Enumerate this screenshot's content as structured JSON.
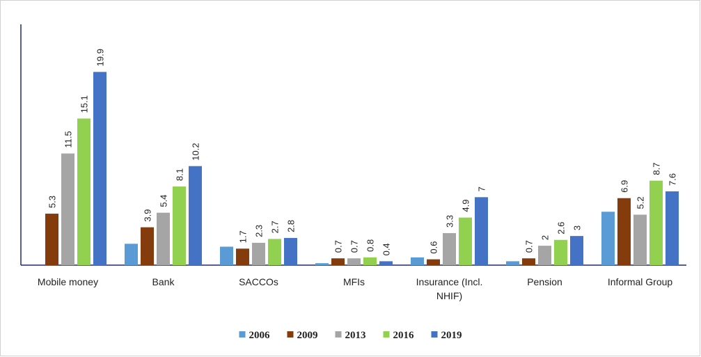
{
  "chart_data": {
    "type": "bar",
    "categories": [
      "Mobile money",
      "Bank",
      "SACCOs",
      "MFIs",
      "Insurance (Incl. NHIF)",
      "Pension",
      "Informal Group"
    ],
    "series": [
      {
        "name": "2006",
        "color": "#5b9bd5",
        "data_labels": false,
        "values": [
          null,
          2.2,
          1.9,
          0.2,
          0.8,
          0.4,
          5.5
        ]
      },
      {
        "name": "2009",
        "color": "#843c0c",
        "data_labels": true,
        "values": [
          5.3,
          3.9,
          1.7,
          0.7,
          0.6,
          0.7,
          6.9
        ]
      },
      {
        "name": "2013",
        "color": "#a5a5a5",
        "data_labels": true,
        "values": [
          11.5,
          5.4,
          2.3,
          0.7,
          3.3,
          2,
          5.2
        ]
      },
      {
        "name": "2016",
        "color": "#92d050",
        "data_labels": true,
        "values": [
          15.1,
          8.1,
          2.7,
          0.8,
          4.9,
          2.6,
          8.7
        ]
      },
      {
        "name": "2019",
        "color": "#4472c4",
        "data_labels": true,
        "values": [
          19.9,
          10.2,
          2.8,
          0.4,
          7,
          3,
          7.6
        ]
      }
    ],
    "ylim": [
      0,
      24.8
    ],
    "legend": "bottom"
  }
}
